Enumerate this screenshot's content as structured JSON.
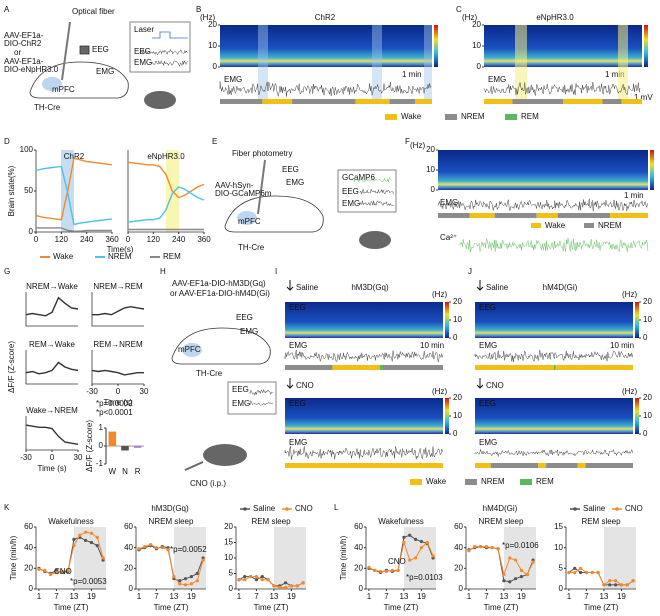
{
  "panels": {
    "A": {
      "label": "A",
      "texts": [
        "Optical fiber",
        "AAV-EF1a-",
        "DIO-ChR2",
        "or",
        "AAV-EF1a-",
        "DIO-eNpHR3.0",
        "EEG",
        "EMG",
        "mPFC",
        "TH-Cre",
        "Laser",
        "EEG",
        "EMG"
      ]
    },
    "B": {
      "label": "B",
      "title": "ChR2",
      "texts": [
        "(Hz)",
        "EEG",
        "1 min",
        "EMG"
      ],
      "yticks": [
        0,
        10,
        20
      ]
    },
    "C": {
      "label": "C",
      "title": "eNpHR3.0",
      "texts": [
        "(Hz)",
        "EEG",
        "1 min",
        "EMG",
        "1 mV"
      ],
      "yticks": [
        0,
        10,
        20
      ]
    },
    "states": [
      {
        "name": "Wake",
        "color": "#f2c014"
      },
      {
        "name": "NREM",
        "color": "#8c8c8c"
      },
      {
        "name": "REM",
        "color": "#5cb85c"
      }
    ],
    "D": {
      "label": "D",
      "legend": [
        "Wake",
        "NREM",
        "REM"
      ]
    },
    "E": {
      "label": "E",
      "texts": [
        "Fiber photometry",
        "AAV-hSyn-",
        "DIO-GCaMP6m",
        "EEG",
        "EMG",
        "mPFC",
        "TH-Cre",
        "GCaMP6",
        "EEG",
        "EMG"
      ]
    },
    "F": {
      "label": "F",
      "texts": [
        "(Hz)",
        "EEG",
        "1 min",
        "EMG",
        "Ca²⁺"
      ],
      "yticks": [
        0,
        10,
        20
      ],
      "legend": [
        "Wake",
        "NREM"
      ]
    },
    "G": {
      "label": "G"
    },
    "H": {
      "label": "H",
      "texts": [
        "AAV-EF1a-DIO-hM3D(Gq)",
        "or AAV-EF1a-DIO-hM4D(Gi)",
        "EEG",
        "EMG",
        "mPFC",
        "TH-Cre",
        "EEG",
        "EMG",
        "CNO (i.p.)"
      ]
    },
    "I": {
      "label": "I",
      "title": "hM3D(Gq)",
      "texts": [
        "Saline",
        "(Hz)",
        "EEG",
        "EMG",
        "10 min",
        "CNO",
        "(Hz)",
        "EEG",
        "EMG"
      ],
      "yticks": [
        0,
        10,
        20
      ]
    },
    "J": {
      "label": "J",
      "title": "hM4D(Gi)",
      "texts": [
        "Saline",
        "(Hz)",
        "EEG",
        "EMG",
        "10 min",
        "CNO",
        "(Hz)",
        "EEG",
        "EMG"
      ],
      "yticks": [
        0,
        10,
        20
      ]
    },
    "legend2": [
      "Wake",
      "NREM",
      "REM"
    ],
    "K": {
      "label": "K",
      "title": "hM3D(Gq)",
      "legend": [
        "Saline",
        "CNO"
      ]
    },
    "L": {
      "label": "L",
      "title": "hM4D(Gi)",
      "legend": [
        "Saline",
        "CNO"
      ]
    }
  },
  "chart_data": [
    {
      "type": "line",
      "title": "ChR2",
      "x": [
        0,
        30,
        60,
        90,
        120,
        150,
        180,
        210,
        240,
        270,
        300,
        330,
        360
      ],
      "series": [
        {
          "color": "#f08a2c",
          "values": [
            20,
            18,
            17,
            16,
            15,
            50,
            90,
            88,
            86,
            85,
            84,
            83,
            82
          ]
        },
        {
          "color": "#4cc3e6",
          "values": [
            75,
            77,
            78,
            79,
            80,
            48,
            9,
            11,
            12,
            13,
            14,
            15,
            16
          ]
        },
        {
          "color": "#888888",
          "values": [
            5,
            5,
            5,
            5,
            5,
            2,
            1,
            1,
            2,
            2,
            2,
            2,
            2
          ]
        }
      ],
      "xlim": [
        0,
        360
      ],
      "xticks": [
        0,
        120,
        240,
        360
      ],
      "ylim": [
        0,
        100
      ],
      "yticks": [
        0,
        50,
        100
      ],
      "y_label": "Brain state(%)",
      "x_label": "Time(s)"
    },
    {
      "type": "line",
      "title": "eNpHR3.0",
      "x": [
        0,
        30,
        60,
        90,
        120,
        150,
        180,
        210,
        240,
        270,
        300,
        330,
        360
      ],
      "series": [
        {
          "color": "#f08a2c",
          "values": [
            85,
            84,
            83,
            82,
            82,
            80,
            70,
            50,
            42,
            45,
            50,
            55,
            58
          ]
        },
        {
          "color": "#4cc3e6",
          "values": [
            12,
            13,
            14,
            15,
            15,
            17,
            27,
            47,
            55,
            52,
            47,
            42,
            39
          ]
        },
        {
          "color": "#888888",
          "values": [
            3,
            3,
            3,
            3,
            3,
            3,
            3,
            3,
            3,
            3,
            3,
            3,
            3
          ]
        }
      ],
      "xlim": [
        0,
        360
      ],
      "xticks": [
        0,
        120,
        240,
        360
      ],
      "ylim": [
        0,
        100
      ]
    },
    {
      "type": "line",
      "title": "NREM→Wake",
      "color": "#333333",
      "x": [
        -30,
        -22.5,
        -15,
        -7.5,
        0,
        7.5,
        15,
        22.5,
        30
      ],
      "values": [
        0,
        0.1,
        0,
        -0.1,
        0.2,
        1.5,
        1.0,
        0.6,
        0.5
      ],
      "xlim": [
        -30,
        30
      ],
      "ylim": [
        -1,
        2
      ]
    },
    {
      "type": "line",
      "title": "NREM→REM",
      "color": "#333333",
      "x": [
        -30,
        -22.5,
        -15,
        -7.5,
        0,
        7.5,
        15,
        22.5,
        30
      ],
      "values": [
        0,
        0,
        0.1,
        0,
        0.3,
        0.6,
        0.7,
        0.6,
        0.5
      ],
      "xlim": [
        -30,
        30
      ],
      "ylim": [
        -1,
        2
      ]
    },
    {
      "type": "line",
      "title": "REM→Wake",
      "color": "#333333",
      "x": [
        -30,
        -22.5,
        -15,
        -7.5,
        0,
        7.5,
        15,
        22.5,
        30
      ],
      "values": [
        0,
        0.1,
        -0.1,
        0,
        0.2,
        0.9,
        0.5,
        0.3,
        0.2
      ],
      "xlim": [
        -30,
        30
      ],
      "ylim": [
        -1,
        2
      ],
      "y_label": "ΔF/F (Z-score)"
    },
    {
      "type": "line",
      "title": "REM→NREM",
      "color": "#333333",
      "x": [
        -30,
        -22.5,
        -15,
        -7.5,
        0,
        7.5,
        15,
        22.5,
        30
      ],
      "values": [
        0.2,
        0.1,
        0.2,
        0.1,
        0,
        -0.2,
        -0.1,
        0,
        0
      ],
      "xlim": [
        -30,
        30
      ],
      "xticks": [
        -30,
        0,
        30
      ],
      "ylim": [
        -1,
        2
      ],
      "x_label": "Time (s)"
    },
    {
      "type": "line",
      "title": "Wake→NREM",
      "color": "#333333",
      "x": [
        -30,
        -22.5,
        -15,
        -7.5,
        0,
        7.5,
        15,
        22.5,
        30
      ],
      "values": [
        1.2,
        1.1,
        1.0,
        1.0,
        0.9,
        0.2,
        -0.3,
        -0.4,
        -0.5
      ],
      "xlim": [
        -30,
        30
      ],
      "xticks": [
        -30,
        0,
        30
      ],
      "ylim": [
        -1,
        2
      ],
      "x_label": "Time (s)"
    },
    {
      "type": "bar",
      "categories": [
        "W",
        "N",
        "R"
      ],
      "values": [
        0.8,
        -0.25,
        -0.1
      ],
      "colors": [
        "#f08a2c",
        "#555555",
        "#b07cc6"
      ],
      "ylim": [
        -1,
        1
      ],
      "yticks": [
        -1,
        0,
        1
      ],
      "y_label": "ΔF/F (Z-score)",
      "annotations": [
        "*p=0.0002",
        "*p<0.0001"
      ]
    },
    {
      "type": "line",
      "title": "Wakefulness",
      "x": [
        1,
        3,
        5,
        7,
        9,
        11,
        13,
        15,
        17,
        19,
        21,
        23
      ],
      "series": [
        {
          "color": "#555555",
          "values": [
            20,
            17,
            15,
            18,
            16,
            17,
            48,
            50,
            47,
            45,
            42,
            28
          ]
        },
        {
          "color": "#f08a2c",
          "values": [
            19,
            18,
            14,
            16,
            17,
            18,
            42,
            52,
            55,
            54,
            50,
            30
          ]
        }
      ],
      "xlim": [
        0,
        24
      ],
      "xticks": [
        1,
        7,
        13,
        19
      ],
      "ylim": [
        0,
        60
      ],
      "yticks": [
        0,
        20,
        40,
        60
      ],
      "x_label": "Time (ZT)",
      "y_label": "Time (min/h)",
      "annotations": [
        "CNO",
        "*p=0.0053"
      ]
    },
    {
      "type": "line",
      "title": "NREM sleep",
      "x": [
        1,
        3,
        5,
        7,
        9,
        11,
        13,
        15,
        17,
        19,
        21,
        23
      ],
      "series": [
        {
          "color": "#555555",
          "values": [
            38,
            40,
            42,
            39,
            41,
            40,
            10,
            8,
            10,
            12,
            15,
            30
          ]
        },
        {
          "color": "#f08a2c",
          "values": [
            39,
            41,
            43,
            40,
            40,
            38,
            12,
            5,
            4,
            5,
            8,
            28
          ]
        }
      ],
      "xlim": [
        0,
        24
      ],
      "xticks": [
        1,
        7,
        13,
        19
      ],
      "ylim": [
        0,
        60
      ],
      "yticks": [
        0,
        20,
        40,
        60
      ],
      "x_label": "Time (ZT)",
      "annotations": [
        "*p=0.0052"
      ]
    },
    {
      "type": "line",
      "title": "REM sleep",
      "x": [
        1,
        3,
        5,
        7,
        9,
        11,
        13,
        15,
        17,
        19,
        21,
        23
      ],
      "series": [
        {
          "color": "#555555",
          "values": [
            3,
            4,
            4,
            3,
            4,
            3,
            1,
            1,
            2,
            1,
            1,
            2
          ]
        },
        {
          "color": "#f08a2c",
          "values": [
            3,
            3,
            4,
            4,
            3,
            3,
            1,
            0.5,
            0.5,
            1,
            1,
            2
          ]
        }
      ],
      "xlim": [
        0,
        24
      ],
      "xticks": [
        1,
        7,
        13,
        19
      ],
      "ylim": [
        0,
        20
      ],
      "yticks": [
        0,
        5,
        10,
        15,
        20
      ],
      "x_label": "Time (ZT)"
    },
    {
      "type": "line",
      "title": "Wakefulness",
      "x": [
        1,
        3,
        5,
        7,
        9,
        11,
        13,
        15,
        17,
        19,
        21,
        23
      ],
      "series": [
        {
          "color": "#555555",
          "values": [
            20,
            18,
            16,
            18,
            17,
            18,
            50,
            52,
            48,
            46,
            44,
            30
          ]
        },
        {
          "color": "#f08a2c",
          "values": [
            21,
            18,
            17,
            17,
            18,
            18,
            45,
            28,
            30,
            40,
            45,
            32
          ]
        }
      ],
      "xlim": [
        0,
        24
      ],
      "xticks": [
        1,
        7,
        13,
        19
      ],
      "ylim": [
        0,
        60
      ],
      "yticks": [
        0,
        20,
        40,
        60
      ],
      "x_label": "Time (ZT)",
      "y_label": "Time (min/h)",
      "annotations": [
        "CNO",
        "*p=0.0103"
      ]
    },
    {
      "type": "line",
      "title": "NREM sleep",
      "x": [
        1,
        3,
        5,
        7,
        9,
        11,
        13,
        15,
        17,
        19,
        21,
        23
      ],
      "series": [
        {
          "color": "#555555",
          "values": [
            38,
            40,
            41,
            40,
            40,
            39,
            8,
            7,
            10,
            12,
            14,
            28
          ]
        },
        {
          "color": "#f08a2c",
          "values": [
            37,
            41,
            41,
            41,
            40,
            39,
            14,
            30,
            28,
            18,
            14,
            26
          ]
        }
      ],
      "xlim": [
        0,
        24
      ],
      "xticks": [
        1,
        7,
        13,
        19
      ],
      "ylim": [
        0,
        60
      ],
      "yticks": [
        0,
        20,
        40,
        60
      ],
      "x_label": "Time (ZT)",
      "annotations": [
        "*p=0.0106"
      ]
    },
    {
      "type": "line",
      "title": "REM sleep",
      "x": [
        1,
        3,
        5,
        7,
        9,
        11,
        13,
        15,
        17,
        19,
        21,
        23
      ],
      "series": [
        {
          "color": "#555555",
          "values": [
            4,
            5,
            4,
            4,
            4,
            4,
            1,
            1,
            1,
            1,
            1,
            2
          ]
        },
        {
          "color": "#f08a2c",
          "values": [
            4,
            4,
            5,
            4,
            4,
            4,
            1,
            2,
            2,
            1,
            1,
            2
          ]
        }
      ],
      "xlim": [
        0,
        24
      ],
      "xticks": [
        1,
        7,
        13,
        19
      ],
      "ylim": [
        0,
        15
      ],
      "yticks": [
        0,
        5,
        10,
        15
      ],
      "x_label": "Time (ZT)"
    }
  ]
}
